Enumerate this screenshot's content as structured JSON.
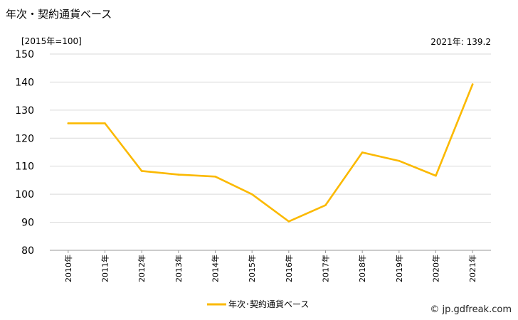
{
  "chart_data": {
    "type": "line",
    "title": "年次・契約通貨ベース",
    "unit_label": "[2015年=100]",
    "latest_label": "2021年: 139.2",
    "categories": [
      "2010年",
      "2011年",
      "2012年",
      "2013年",
      "2014年",
      "2015年",
      "2016年",
      "2017年",
      "2018年",
      "2019年",
      "2020年",
      "2021年"
    ],
    "series": [
      {
        "name": "年次･契約通貨ベース",
        "color": "#FBB900",
        "values": [
          125.3,
          125.3,
          108.3,
          107.0,
          106.3,
          100.0,
          90.3,
          96.1,
          114.9,
          111.9,
          106.6,
          139.2
        ]
      }
    ],
    "ylim": [
      80,
      150
    ],
    "yticks": [
      80,
      90,
      100,
      110,
      120,
      130,
      140,
      150
    ],
    "grid": true,
    "legend": "bottom",
    "credit": "© jp.gdfreak.com"
  }
}
